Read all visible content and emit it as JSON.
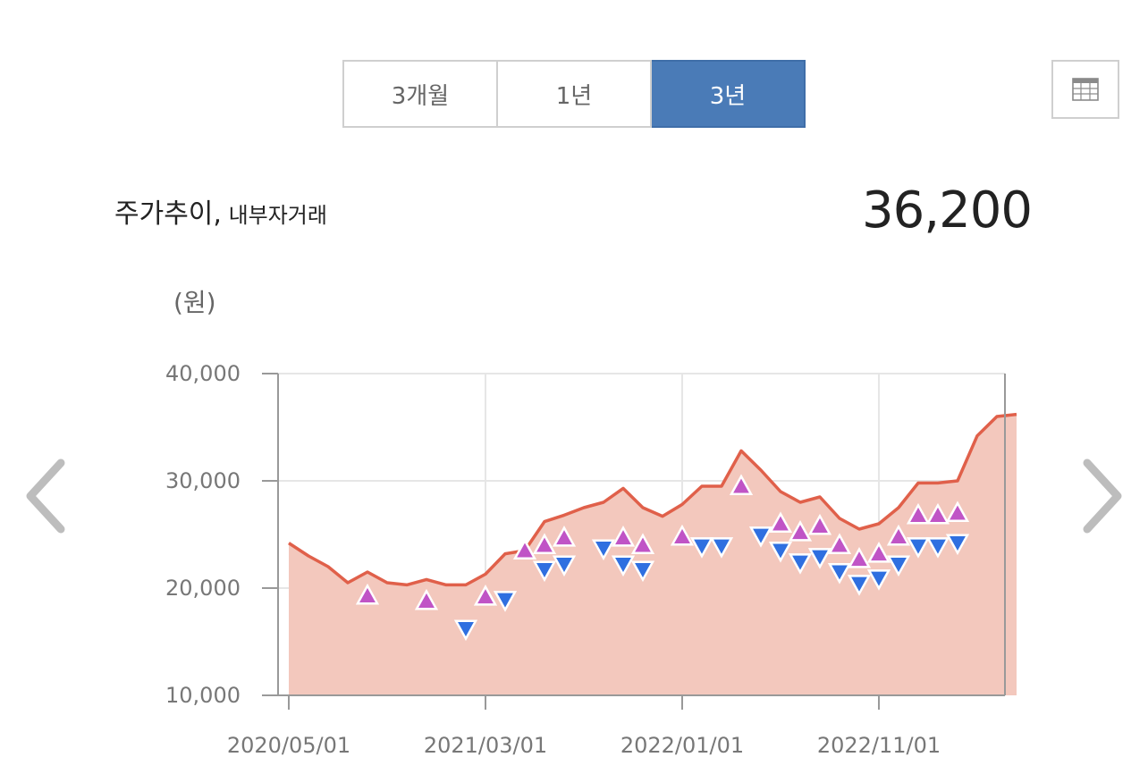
{
  "period_tabs": [
    {
      "label": "3개월",
      "active": false
    },
    {
      "label": "1년",
      "active": false
    },
    {
      "label": "3년",
      "active": true
    }
  ],
  "table_toggle_icon": "table-icon",
  "title": {
    "main": "주가추이,",
    "sub": " 내부자거래"
  },
  "current_price": "36,200",
  "unit_label": "(원)",
  "nav_icons": {
    "prev": "chevron-left-icon",
    "next": "chevron-right-icon"
  },
  "colors": {
    "accent": "#4a7bb7",
    "line": "#e0604a",
    "area": "#f3c8bd",
    "buy_marker": "#c054c6",
    "sell_marker": "#2f6fe0"
  },
  "chart_data": {
    "type": "area",
    "y_range": [
      10000,
      40000
    ],
    "y_ticks": [
      "40,000",
      "30,000",
      "20,000",
      "10,000"
    ],
    "x_ticks": [
      "2020/05/01",
      "2021/03/01",
      "2022/01/01",
      "2022/11/01"
    ],
    "grid": true,
    "series": [
      {
        "x": [
          "2020/05",
          "2020/06",
          "2020/07",
          "2020/08",
          "2020/09",
          "2020/10",
          "2020/11",
          "2020/12",
          "2021/01",
          "2021/02",
          "2021/03",
          "2021/04",
          "2021/05",
          "2021/06",
          "2021/07",
          "2021/08",
          "2021/09",
          "2021/10",
          "2021/11",
          "2021/12",
          "2022/01",
          "2022/02",
          "2022/03",
          "2022/04",
          "2022/05",
          "2022/06",
          "2022/07",
          "2022/08",
          "2022/09",
          "2022/10",
          "2022/11",
          "2022/12",
          "2023/01",
          "2023/02",
          "2023/03",
          "2023/04",
          "2023/05",
          "2023/06"
        ],
        "values": [
          24200,
          23000,
          22000,
          20500,
          21500,
          20500,
          20300,
          20800,
          20300,
          20300,
          21300,
          23200,
          23500,
          26200,
          26800,
          27500,
          28000,
          29300,
          27500,
          26700,
          27800,
          29500,
          29500,
          32800,
          31000,
          29000,
          28000,
          28500,
          26500,
          25500,
          26000,
          27500,
          29800,
          29800,
          30000,
          34200,
          36000,
          36200
        ]
      }
    ],
    "insider_buys": [
      {
        "date": "2020/09",
        "price": 19300
      },
      {
        "date": "2020/12",
        "price": 18800
      },
      {
        "date": "2021/03",
        "price": 19200
      },
      {
        "date": "2021/05",
        "price": 23500
      },
      {
        "date": "2021/06",
        "price": 24000
      },
      {
        "date": "2021/07",
        "price": 24700
      },
      {
        "date": "2021/10",
        "price": 24700
      },
      {
        "date": "2021/11",
        "price": 24000
      },
      {
        "date": "2022/01",
        "price": 24800
      },
      {
        "date": "2022/04",
        "price": 29500
      },
      {
        "date": "2022/06",
        "price": 26000
      },
      {
        "date": "2022/07",
        "price": 25200
      },
      {
        "date": "2022/08",
        "price": 25800
      },
      {
        "date": "2022/09",
        "price": 24000
      },
      {
        "date": "2022/10",
        "price": 22700
      },
      {
        "date": "2022/11",
        "price": 23200
      },
      {
        "date": "2022/12",
        "price": 24800
      },
      {
        "date": "2023/01",
        "price": 26800
      },
      {
        "date": "2023/02",
        "price": 26800
      },
      {
        "date": "2023/03",
        "price": 27000
      }
    ],
    "insider_sells": [
      {
        "date": "2021/02",
        "price": 16200
      },
      {
        "date": "2021/04",
        "price": 18900
      },
      {
        "date": "2021/06",
        "price": 21700
      },
      {
        "date": "2021/07",
        "price": 22200
      },
      {
        "date": "2021/09",
        "price": 23700
      },
      {
        "date": "2021/10",
        "price": 22200
      },
      {
        "date": "2021/11",
        "price": 21700
      },
      {
        "date": "2022/02",
        "price": 23900
      },
      {
        "date": "2022/03",
        "price": 23900
      },
      {
        "date": "2022/05",
        "price": 24900
      },
      {
        "date": "2022/06",
        "price": 23500
      },
      {
        "date": "2022/07",
        "price": 22400
      },
      {
        "date": "2022/08",
        "price": 22900
      },
      {
        "date": "2022/09",
        "price": 21500
      },
      {
        "date": "2022/10",
        "price": 20400
      },
      {
        "date": "2022/11",
        "price": 20900
      },
      {
        "date": "2022/12",
        "price": 22200
      },
      {
        "date": "2023/01",
        "price": 23900
      },
      {
        "date": "2023/02",
        "price": 23900
      },
      {
        "date": "2023/03",
        "price": 24200
      }
    ]
  }
}
